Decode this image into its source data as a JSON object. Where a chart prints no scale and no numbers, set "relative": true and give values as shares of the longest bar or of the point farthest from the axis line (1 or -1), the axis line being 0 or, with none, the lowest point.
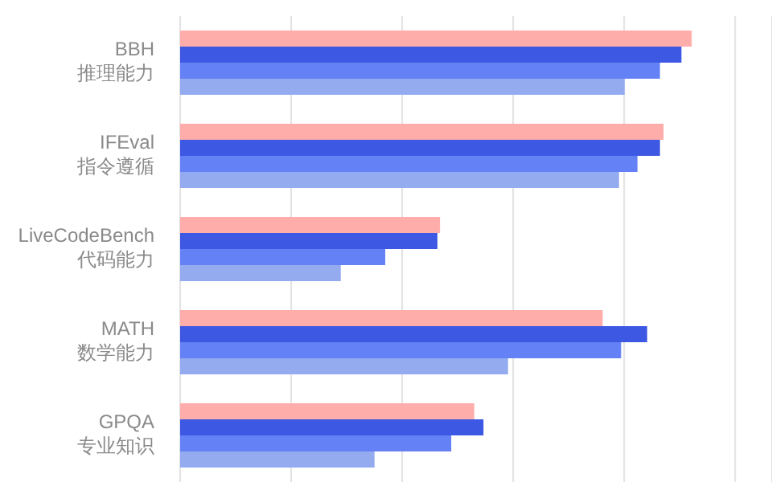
{
  "chart_data": {
    "type": "bar",
    "orientation": "horizontal",
    "relative": true,
    "grid": "x",
    "legend": false,
    "categories": [
      "BBH\n推理能力",
      "IFEval\n指令遵循",
      "LiveCodeBench\n代码能力",
      "MATH\n数学能力",
      "GPQA\n专业知识"
    ],
    "series": [
      {
        "color": "#ffadaa",
        "values": [
          1,
          0.945,
          0.508,
          0.826,
          0.575
        ]
      },
      {
        "color": "#3d58e3",
        "values": [
          0.98,
          0.938,
          0.503,
          0.913,
          0.593
        ]
      },
      {
        "color": "#6482f5",
        "values": [
          0.938,
          0.894,
          0.401,
          0.862,
          0.53
        ]
      },
      {
        "color": "#94abf0",
        "values": [
          0.869,
          0.858,
          0.314,
          0.641,
          0.38
        ]
      }
    ]
  }
}
